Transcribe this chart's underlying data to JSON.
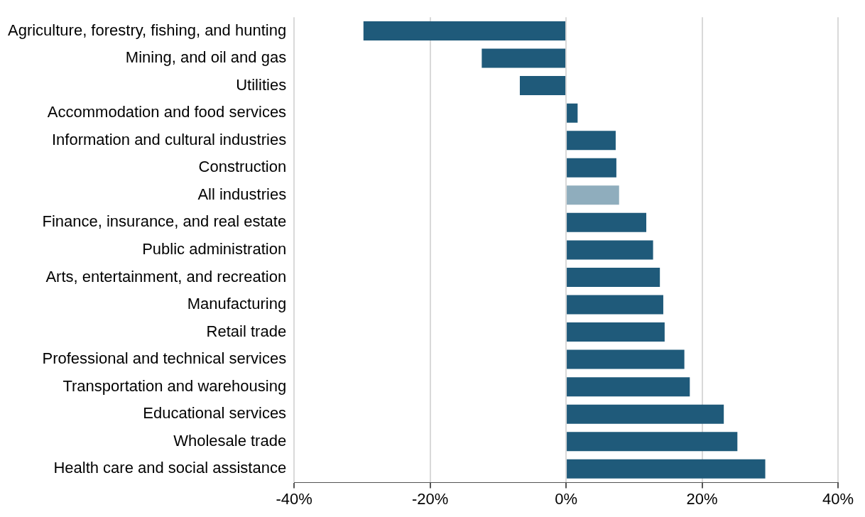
{
  "chart_data": {
    "type": "bar",
    "orientation": "horizontal",
    "categories": [
      "Agriculture, forestry, fishing, and hunting",
      "Mining, and oil and gas",
      "Utilities",
      "Accommodation and food services",
      "Information and cultural industries",
      "Construction",
      "All industries",
      "Finance, insurance, and real estate",
      "Public administration",
      "Arts, entertainment, and recreation",
      "Manufacturing",
      "Retail trade",
      "Professional and technical services",
      "Transportation and warehousing",
      "Educational services",
      "Wholesale trade",
      "Health care and social assistance"
    ],
    "values": [
      -29.8,
      -12.4,
      -6.8,
      1.7,
      7.3,
      7.4,
      7.8,
      11.8,
      12.8,
      13.8,
      14.3,
      14.5,
      17.4,
      18.2,
      23.2,
      25.2,
      29.3
    ],
    "colors": [
      "#1f5a7a",
      "#1f5a7a",
      "#1f5a7a",
      "#1f5a7a",
      "#1f5a7a",
      "#1f5a7a",
      "#8fadbd",
      "#1f5a7a",
      "#1f5a7a",
      "#1f5a7a",
      "#1f5a7a",
      "#1f5a7a",
      "#1f5a7a",
      "#1f5a7a",
      "#1f5a7a",
      "#1f5a7a",
      "#1f5a7a"
    ],
    "xlim": [
      -40,
      40
    ],
    "xticks": [
      {
        "value": -40,
        "label": "-40%"
      },
      {
        "value": -20,
        "label": "-20%"
      },
      {
        "value": 0,
        "label": "0%"
      },
      {
        "value": 20,
        "label": "20%"
      },
      {
        "value": 40,
        "label": "40%"
      }
    ],
    "grid": "x",
    "legend": false
  }
}
